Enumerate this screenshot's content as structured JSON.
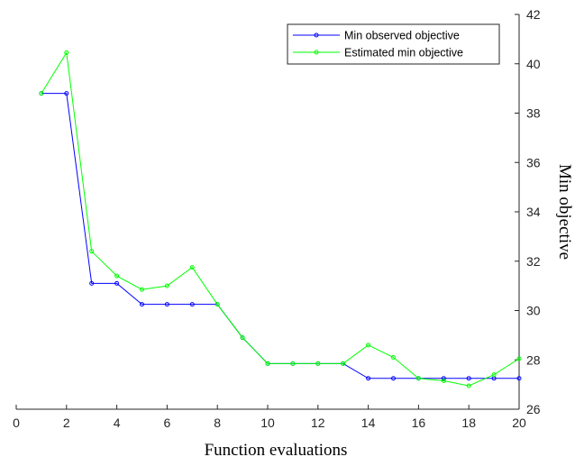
{
  "chart_data": {
    "type": "line",
    "xlabel": "Function evaluations",
    "ylabel": "Min objective",
    "xlim": [
      0,
      20
    ],
    "ylim": [
      26,
      42
    ],
    "y_axis_side": "right",
    "x_ticks": [
      "0",
      "2",
      "4",
      "6",
      "8",
      "10",
      "12",
      "14",
      "16",
      "18",
      "20"
    ],
    "y_ticks": [
      "26",
      "28",
      "30",
      "32",
      "34",
      "36",
      "38",
      "40",
      "42"
    ],
    "grid": false,
    "legend_position": "top-right",
    "x": [
      1,
      2,
      3,
      4,
      5,
      6,
      7,
      8,
      9,
      10,
      11,
      12,
      13,
      14,
      15,
      16,
      17,
      18,
      19,
      20
    ],
    "series": [
      {
        "name": "Min observed objective",
        "color": "#0000ff",
        "values": [
          38.8,
          38.8,
          31.1,
          31.1,
          30.25,
          30.25,
          30.25,
          30.25,
          28.9,
          27.85,
          27.85,
          27.85,
          27.85,
          27.25,
          27.25,
          27.25,
          27.25,
          27.25,
          27.25,
          27.25
        ]
      },
      {
        "name": "Estimated min objective",
        "color": "#00ff00",
        "values": [
          38.8,
          40.45,
          32.4,
          31.4,
          30.85,
          31.0,
          31.75,
          30.25,
          28.9,
          27.85,
          27.85,
          27.85,
          27.85,
          28.6,
          28.1,
          27.25,
          27.15,
          26.95,
          27.4,
          28.05
        ]
      }
    ]
  }
}
